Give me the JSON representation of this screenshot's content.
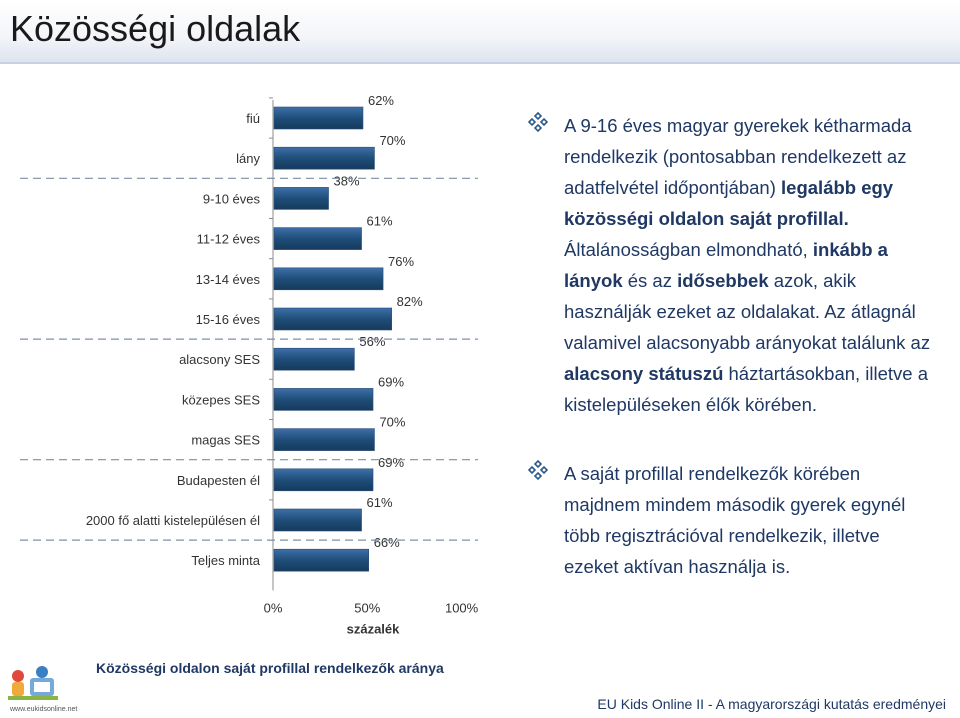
{
  "page": {
    "title": "Közösségi oldalak"
  },
  "chart_data": {
    "type": "bar",
    "orientation": "horizontal",
    "categories": [
      "fiú",
      "lány",
      "9-10 éves",
      "11-12 éves",
      "13-14 éves",
      "15-16 éves",
      "alacsony SES",
      "közepes SES",
      "magas SES",
      "Budapesten él",
      "2000 fő alatti kistelepülésen él",
      "Teljes minta"
    ],
    "values": [
      62,
      70,
      38,
      61,
      76,
      82,
      56,
      69,
      70,
      69,
      61,
      66
    ],
    "value_labels": [
      "62%",
      "70%",
      "38%",
      "61%",
      "76%",
      "82%",
      "56%",
      "69%",
      "70%",
      "69%",
      "61%",
      "66%"
    ],
    "group_separators_after": [
      1,
      5,
      8,
      10
    ],
    "xlim": [
      0,
      100
    ],
    "xticks": [
      "0%",
      "50%",
      "100%"
    ],
    "xlabel": "százalék",
    "title": "Közösségi oldalon saját profillal rendelkezők aránya",
    "bar_color": "#1f4e79",
    "grid": false
  },
  "bullets": [
    {
      "segments": [
        {
          "t": "A 9-16 éves magyar gyerekek kétharmada rendelkezik (pontosabban rendelkezett az adatfelvétel időpontjában) ",
          "b": false
        },
        {
          "t": "legalább egy közösségi oldalon saját profillal.",
          "b": true
        },
        {
          "t": " Általánosságban elmondható, ",
          "b": false
        },
        {
          "t": "inkább a lányok",
          "b": true
        },
        {
          "t": " és az ",
          "b": false
        },
        {
          "t": "idősebbek",
          "b": true
        },
        {
          "t": " azok, akik használják ezeket az oldalakat. Az átlagnál valamivel alacsonyabb arányokat találunk az ",
          "b": false
        },
        {
          "t": "alacsony státuszú",
          "b": true
        },
        {
          "t": " háztartásokban, illetve a kistelepüléseken élők körében.",
          "b": false
        }
      ]
    },
    {
      "segments": [
        {
          "t": "A saját profillal rendelkezők körében majdnem mindem második gyerek egynél több regisztrációval rendelkezik, illetve ezeket aktívan használja is.",
          "b": false
        }
      ]
    }
  ],
  "footer": {
    "left": "Közösségi oldalon saját profillal rendelkezők aránya",
    "right": "EU Kids Online II - A magyarországi kutatás eredményei",
    "logo_url": "www.eukidsonline.net"
  },
  "colors": {
    "text_blue": "#1f3864",
    "bullet_blue": "#2e5a8c"
  }
}
